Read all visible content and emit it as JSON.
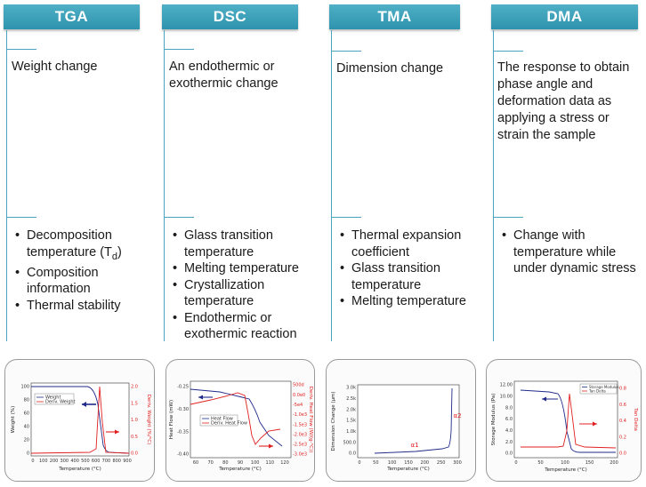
{
  "columns": [
    {
      "title": "TGA",
      "description": "Weight change",
      "bullets": [
        "Decomposition temperature (T",
        "Composition information",
        "Thermal stability"
      ],
      "subscript": "d",
      "after_subscript": ")"
    },
    {
      "title": "DSC",
      "description": "An endothermic or exothermic change",
      "bullets": [
        "Glass transition temperature",
        "Melting temperature",
        "Crystallization temperature",
        "Endothermic or exothermic reaction"
      ]
    },
    {
      "title": "TMA",
      "description": "Dimension change",
      "bullets": [
        "Thermal expansion coefficient",
        "Glass transition temperature",
        "Melting temperature"
      ]
    },
    {
      "title": "DMA",
      "description": "The response to obtain phase angle and deformation data as applying a stress or strain the sample",
      "bullets": [
        "Change with temperature while under dynamic stress"
      ]
    }
  ],
  "charts": {
    "tga": {
      "xlabel": "Temperature (°C)",
      "ylabel": "Weight (%)",
      "y2label": "Deriv. Weight (%/°C)",
      "xticks": [
        "0",
        "100",
        "200",
        "300",
        "400",
        "500",
        "600",
        "700",
        "800",
        "900"
      ],
      "yticks": [
        "0",
        "20",
        "40",
        "60",
        "80",
        "100"
      ],
      "y2ticks": [
        "0.0",
        "0.5",
        "1.0",
        "1.5",
        "2.0"
      ],
      "legend": [
        "Weight",
        "Deriv. Weight"
      ],
      "colors": {
        "primary": "#1f2a8a",
        "secondary": "#e02020"
      }
    },
    "dsc": {
      "xlabel": "Temperature (°C)",
      "ylabel": "Heat Flow (mW)",
      "y2label": "Deriv. Heat Flow (W/(g·°C))",
      "xticks": [
        "60",
        "70",
        "80",
        "90",
        "100",
        "110",
        "120"
      ],
      "yticks": [
        "-0.25",
        "-0.30",
        "-0.35",
        "-0.40"
      ],
      "y2ticks": [
        "500d",
        "0.0e0",
        "-5e4",
        "-1.0e3",
        "-1.5e3",
        "-2.0e3",
        "-2.5e3",
        "-3.0e3"
      ],
      "legend": [
        "Heat Flow",
        "Deriv. Heat Flow"
      ],
      "colors": {
        "primary": "#1f2a8a",
        "secondary": "#e02020"
      }
    },
    "tma": {
      "xlabel": "Temperature (°C)",
      "ylabel": "Dimension Change (μm)",
      "xticks": [
        "0",
        "50",
        "100",
        "150",
        "200",
        "250",
        "300"
      ],
      "yticks": [
        "0.0",
        "500.0",
        "1.0k",
        "1.5k",
        "2.0k",
        "2.5k",
        "3.0k"
      ],
      "annotations": [
        "α1",
        "α2"
      ],
      "colors": {
        "primary": "#1f2a8a",
        "annotation": "#e02020"
      }
    },
    "dma": {
      "xlabel": "Temperature (°C)",
      "ylabel": "Storage Modulus (Pa)",
      "y2label": "Tan Delta",
      "xticks": [
        "0",
        "50",
        "100",
        "150",
        "200"
      ],
      "yticks": [
        "0.0",
        "2.0",
        "4.0",
        "6.0",
        "8.0",
        "10.00",
        "12.00"
      ],
      "y2ticks": [
        "0.0",
        "0.2",
        "0.4",
        "0.6",
        "0.8"
      ],
      "legend": [
        "Storage Modulus",
        "Tan Delta"
      ],
      "colors": {
        "primary": "#1f2a8a",
        "secondary": "#e02020"
      }
    }
  }
}
